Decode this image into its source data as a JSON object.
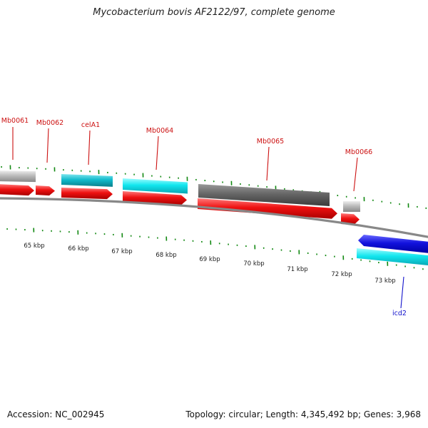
{
  "title": "Mycobacterium bovis AF2122/97, complete genome",
  "footer": {
    "accession": "Accession: NC_002945",
    "summary": "Topology: circular; Length: 4,345,492 bp; Genes: 3,968"
  },
  "map": {
    "kbp_labels": [
      "65 kbp",
      "66 kbp",
      "67 kbp",
      "68 kbp",
      "69 kbp",
      "70 kbp",
      "71 kbp",
      "72 kbp",
      "73 kbp"
    ],
    "gene_labels": [
      {
        "text": "Mb0061",
        "color": "#cc1111"
      },
      {
        "text": "Mb0062",
        "color": "#cc1111"
      },
      {
        "text": "celA1",
        "color": "#cc1111"
      },
      {
        "text": "Mb0064",
        "color": "#cc1111"
      },
      {
        "text": "Mb0065",
        "color": "#cc1111"
      },
      {
        "text": "Mb0066",
        "color": "#cc1111"
      },
      {
        "text": "icd2",
        "color": "#1111cc"
      }
    ],
    "colors": {
      "cds": "#ee1111",
      "cyan": "#11dddd",
      "teal": "#11bbcc",
      "gray": "#bbbbbb",
      "dark_gray": "#666666",
      "blue": "#1111dd",
      "tick": "#118811",
      "backbone": "#888888"
    }
  }
}
